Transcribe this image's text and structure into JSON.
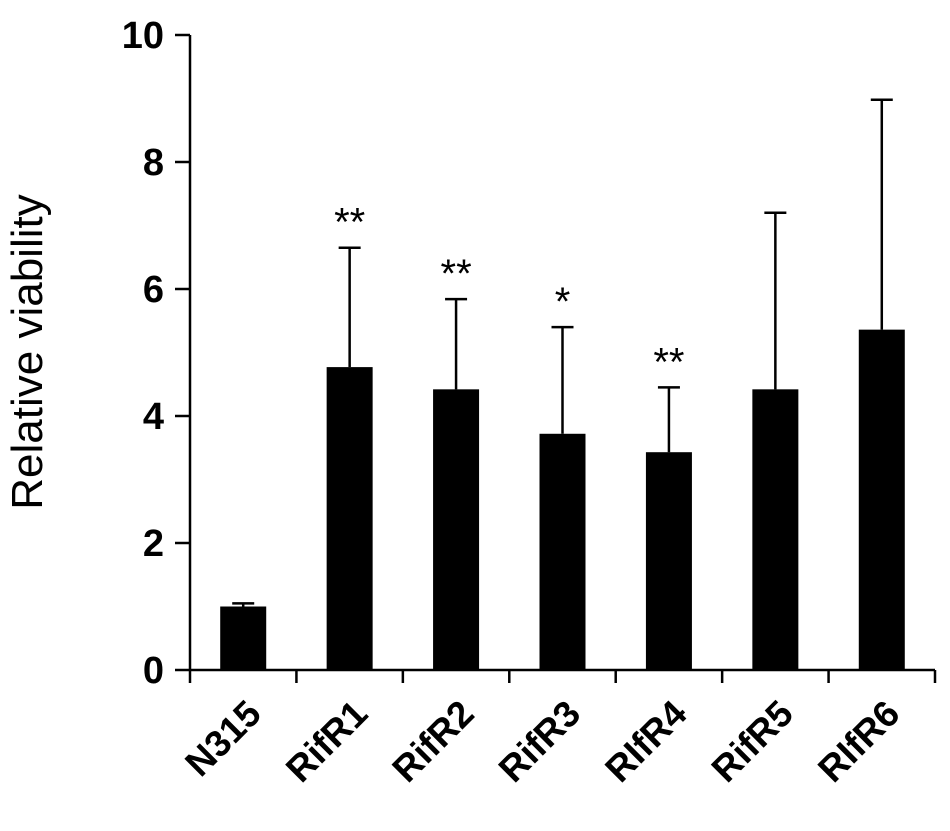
{
  "chart_data": {
    "type": "bar",
    "title": "",
    "xlabel": "",
    "ylabel": "Relative viability",
    "ylim": [
      0,
      10
    ],
    "yticks": [
      "0",
      "2",
      "4",
      "6",
      "8",
      "10"
    ],
    "grid": false,
    "legend": "none",
    "bar_color": "#000000",
    "categories": [
      "N315",
      "RifR1",
      "RifR2",
      "RifR3",
      "RIfR4",
      "RifR5",
      "RIfR6"
    ],
    "values": [
      1.0,
      4.77,
      4.42,
      3.72,
      3.43,
      4.42,
      5.36
    ],
    "error_upper": [
      0.05,
      1.88,
      1.42,
      1.68,
      1.02,
      2.78,
      3.62
    ],
    "significance": [
      "",
      "**",
      "**",
      "*",
      "**",
      "",
      ""
    ]
  }
}
